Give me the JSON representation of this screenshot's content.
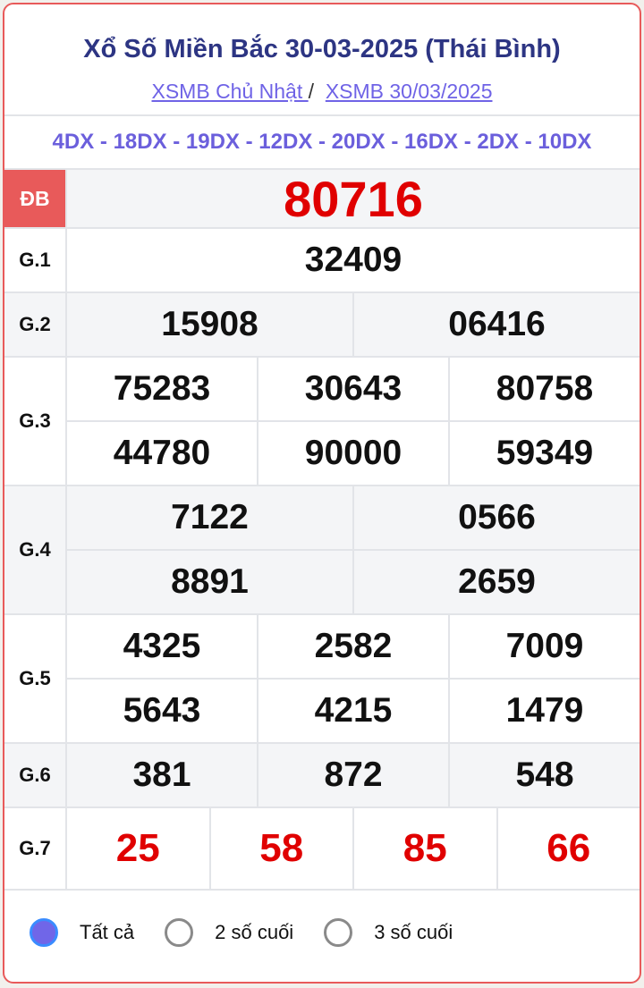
{
  "title": "Xổ Số Miền Bắc 30-03-2025 (Thái Bình)",
  "breadcrumb": {
    "link1": "XSMB Chủ Nhật ",
    "sep": "/",
    "link2": "XSMB 30/03/2025"
  },
  "codes": "4DX - 18DX - 19DX - 12DX - 20DX - 16DX - 2DX - 10DX",
  "prizes": {
    "db": {
      "label": "ĐB",
      "values": [
        "80716"
      ]
    },
    "g1": {
      "label": "G.1",
      "values": [
        "32409"
      ]
    },
    "g2": {
      "label": "G.2",
      "values": [
        "15908",
        "06416"
      ]
    },
    "g3": {
      "label": "G.3",
      "values": [
        "75283",
        "30643",
        "80758",
        "44780",
        "90000",
        "59349"
      ]
    },
    "g4": {
      "label": "G.4",
      "values": [
        "7122",
        "0566",
        "8891",
        "2659"
      ]
    },
    "g5": {
      "label": "G.5",
      "values": [
        "4325",
        "2582",
        "7009",
        "5643",
        "4215",
        "1479"
      ]
    },
    "g6": {
      "label": "G.6",
      "values": [
        "381",
        "872",
        "548"
      ]
    },
    "g7": {
      "label": "G.7",
      "values": [
        "25",
        "58",
        "85",
        "66"
      ]
    }
  },
  "filter": {
    "options": [
      "Tất cả",
      "2 số cuối",
      "3 số cuối"
    ],
    "selected": "Tất cả"
  },
  "colors": {
    "accent": "#e85a5a",
    "special": "#e00000",
    "title": "#2d3583",
    "link": "#6f63e6"
  }
}
